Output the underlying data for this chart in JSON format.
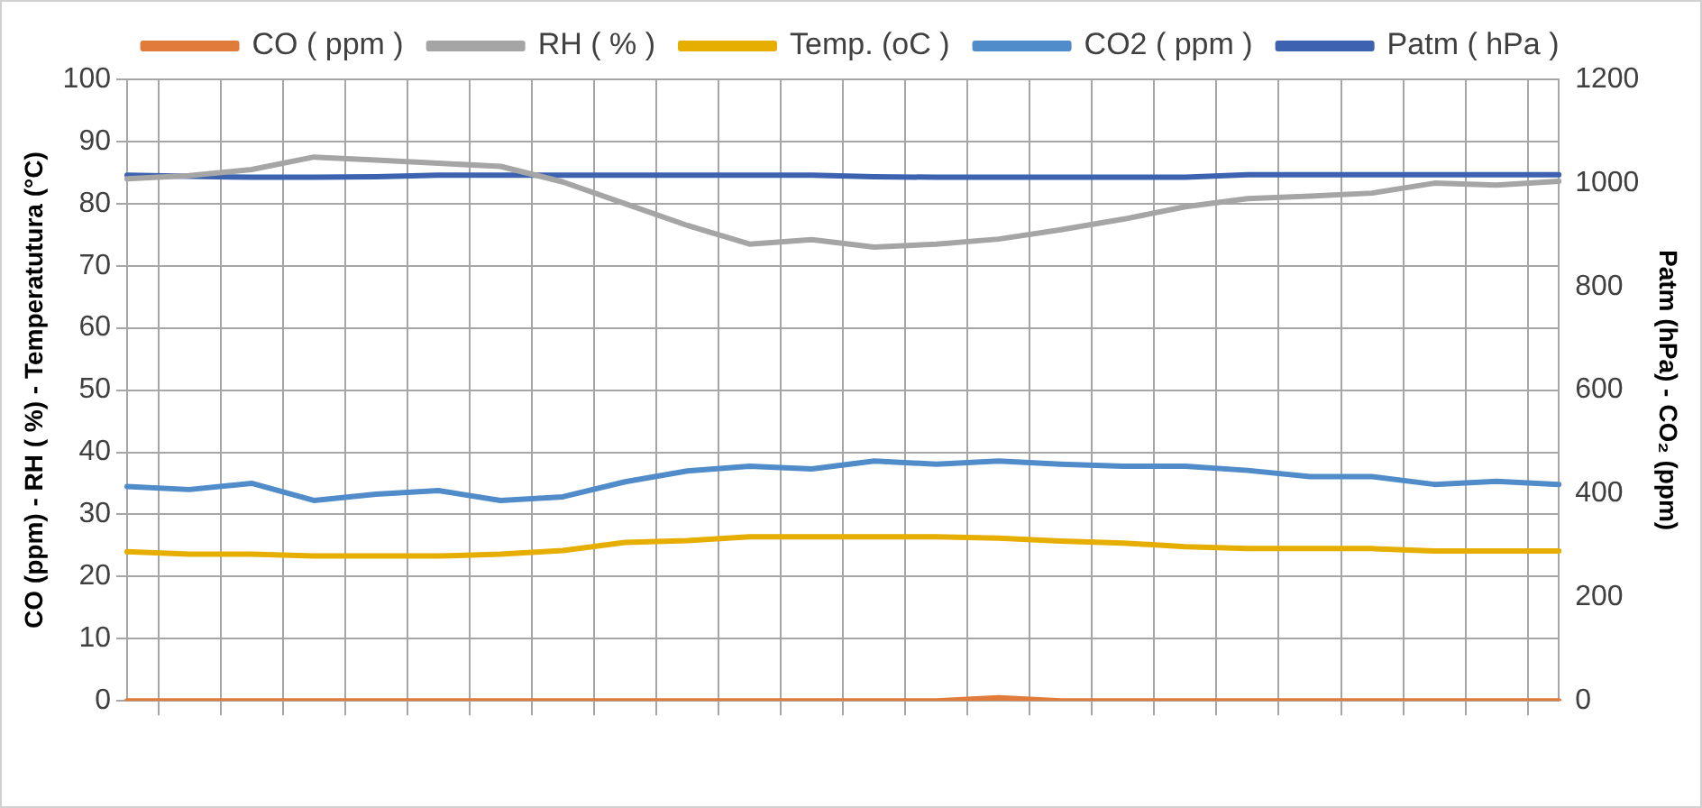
{
  "chart_data": {
    "type": "line",
    "categories": [
      null,
      null,
      null,
      null,
      null,
      null,
      null,
      null,
      null,
      null,
      null,
      null,
      null,
      null,
      null,
      null,
      null,
      null,
      null,
      null,
      null,
      null,
      null,
      null
    ],
    "ylabel": "CO (ppm) - RH ( %) - Temperatutura (°C)",
    "y2label": "Patm (hPa) - CO₂ (ppm)",
    "ylim": [
      0,
      100
    ],
    "yticks": [
      0,
      10,
      20,
      30,
      40,
      50,
      60,
      70,
      80,
      90,
      100
    ],
    "y2lim": [
      0,
      1200
    ],
    "y2ticks": [
      0,
      200,
      400,
      600,
      800,
      1000,
      1200
    ],
    "grid": true,
    "legend": "top",
    "marker": "none",
    "line_style": "solid",
    "series": [
      {
        "name": "CO ( ppm )",
        "color": "#e07b39",
        "values": [
          0,
          0,
          0,
          0,
          0,
          0,
          0,
          0,
          0,
          0,
          0,
          0,
          0,
          0,
          0.5,
          0,
          0,
          0,
          0,
          0,
          0,
          0,
          0,
          0
        ]
      },
      {
        "name": "RH ( % )",
        "color": "#a5a5a5",
        "values": [
          84,
          84.5,
          85.5,
          87.5,
          87,
          86.5,
          86,
          83.5,
          80,
          76.5,
          73.5,
          74.2,
          73,
          73.5,
          74.3,
          75.8,
          77.5,
          79.5,
          80.8,
          81.2,
          81.7,
          83.3,
          83,
          83.6
        ]
      },
      {
        "name": "Temp. (oC )",
        "color": "#e5ae00",
        "values": [
          24,
          23.6,
          23.6,
          23.3,
          23.3,
          23.3,
          23.6,
          24.2,
          25.5,
          25.8,
          26.4,
          26.4,
          26.4,
          26.4,
          26.2,
          25.7,
          25.4,
          24.8,
          24.5,
          24.5,
          24.5,
          24.1,
          24.1,
          24.1
        ]
      },
      {
        "name": "CO2 ( ppm )",
        "color": "#4f8cc9",
        "axis": "y2",
        "values": [
          414,
          408,
          420,
          387,
          399,
          406,
          387,
          394,
          423,
          444,
          453,
          448,
          463,
          457,
          463,
          457,
          453,
          453,
          445,
          433,
          433,
          418,
          424,
          418
        ]
      },
      {
        "name": "Patm ( hPa )",
        "color": "#3d63b0",
        "axis": "y2",
        "values": [
          1015,
          1013,
          1011,
          1011,
          1012,
          1015,
          1015,
          1015,
          1015,
          1015,
          1015,
          1015,
          1012,
          1011,
          1011,
          1011,
          1011,
          1011,
          1016,
          1016,
          1016,
          1016,
          1016,
          1016
        ]
      }
    ]
  }
}
